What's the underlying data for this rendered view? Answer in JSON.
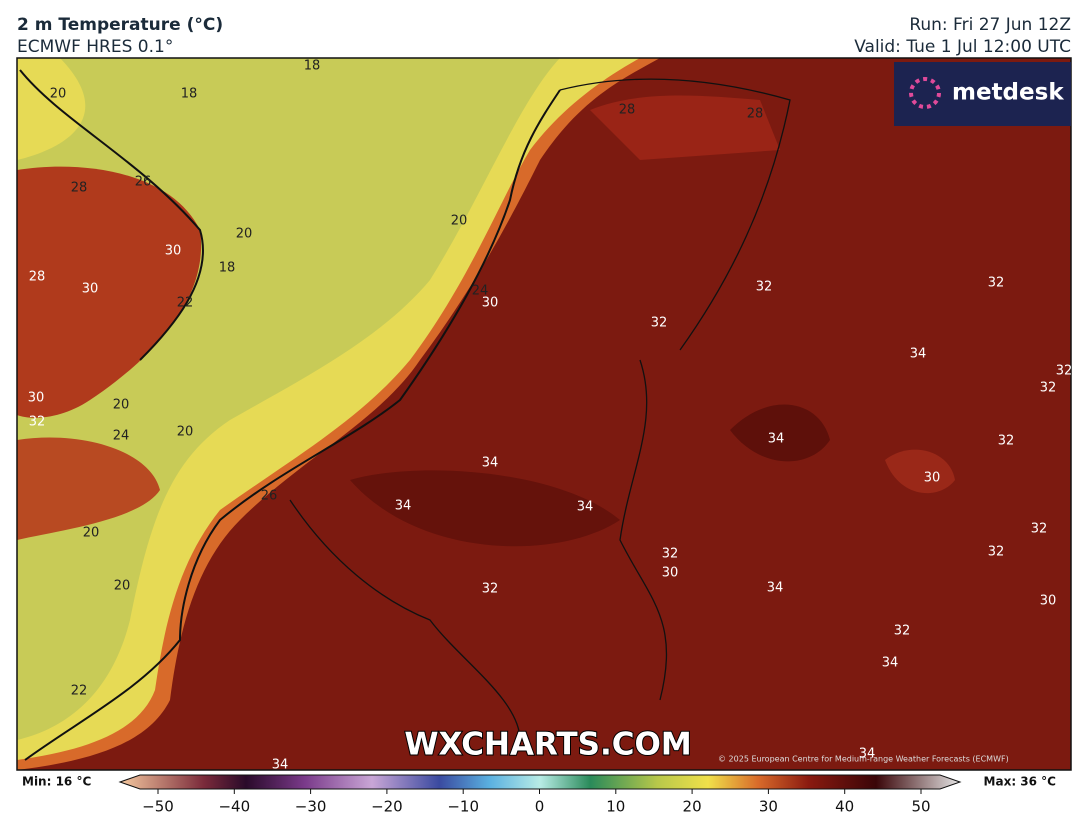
{
  "header": {
    "title": "2 m Temperature (°C)",
    "subtitle": "ECMWF HRES 0.1°",
    "run": "Run: Fri 27 Jun 12Z",
    "valid": "Valid: Tue 1 Jul 12:00 UTC"
  },
  "logo": "metdesk",
  "watermark": "WXCHARTS.COM",
  "copyright": "© 2025 European Centre for Medium-range Weather Forecasts (ECMWF)",
  "contour_labels": [
    18,
    20,
    18,
    28,
    28,
    28,
    26,
    20,
    20,
    30,
    18,
    28,
    30,
    24,
    30,
    32,
    32,
    22,
    32,
    34,
    32,
    32,
    30,
    20,
    32,
    24,
    20,
    34,
    32,
    34,
    30,
    26,
    34,
    34,
    32,
    20,
    32,
    32,
    30,
    20,
    32,
    34,
    30,
    32,
    34,
    22,
    34,
    34
  ],
  "colorbar": {
    "min_label": "Min: 16 °C",
    "max_label": "Max: 36 °C",
    "ticks": [
      {
        "value": -50,
        "label": "−50"
      },
      {
        "value": -40,
        "label": "−40"
      },
      {
        "value": -30,
        "label": "−30"
      },
      {
        "value": -20,
        "label": "−20"
      },
      {
        "value": -10,
        "label": "−10"
      },
      0,
      10,
      20,
      30,
      40,
      50
    ]
  }
}
